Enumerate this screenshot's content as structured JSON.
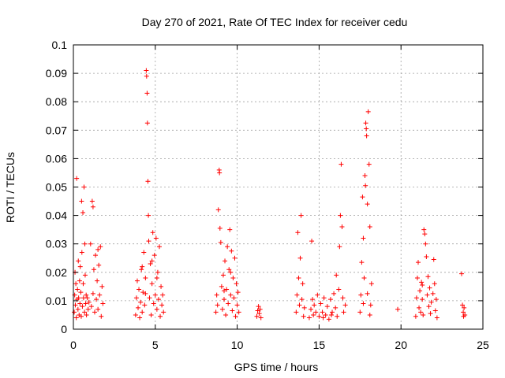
{
  "chart_data": {
    "type": "scatter",
    "title": "Day 270 of 2021, Rate Of TEC Index for receiver cedu",
    "xlabel": "GPS time / hours",
    "ylabel": "ROTI / TECUs",
    "xlim": [
      0,
      25
    ],
    "ylim": [
      0,
      0.1
    ],
    "grid": true,
    "marker": "+",
    "point_color": "#ff0000",
    "x_ticks": [
      {
        "value": 0,
        "label": "0"
      },
      {
        "value": 5,
        "label": "5"
      },
      {
        "value": 10,
        "label": "10"
      },
      {
        "value": 15,
        "label": "15"
      },
      {
        "value": 20,
        "label": "20"
      },
      {
        "value": 25,
        "label": "25"
      }
    ],
    "y_ticks": [
      {
        "value": 0,
        "label": "0"
      },
      {
        "value": 0.01,
        "label": "0.01"
      },
      {
        "value": 0.02,
        "label": "0.02"
      },
      {
        "value": 0.03,
        "label": "0.03"
      },
      {
        "value": 0.04,
        "label": "0.04"
      },
      {
        "value": 0.05,
        "label": "0.05"
      },
      {
        "value": 0.06,
        "label": "0.06"
      },
      {
        "value": 0.07,
        "label": "0.07"
      },
      {
        "value": 0.08,
        "label": "0.08"
      },
      {
        "value": 0.09,
        "label": "0.09"
      },
      {
        "value": 0.1,
        "label": "0.1"
      }
    ],
    "series": [
      {
        "name": "ROTI",
        "points": [
          [
            0.05,
            0.006
          ],
          [
            0.08,
            0.012
          ],
          [
            0.1,
            0.02
          ],
          [
            0.12,
            0.0085
          ],
          [
            0.15,
            0.016
          ],
          [
            0.18,
            0.004
          ],
          [
            0.2,
            0.053
          ],
          [
            0.22,
            0.0105
          ],
          [
            0.25,
            0.014
          ],
          [
            0.28,
            0.007
          ],
          [
            0.3,
            0.024
          ],
          [
            0.32,
            0.011
          ],
          [
            0.35,
            0.005
          ],
          [
            0.38,
            0.017
          ],
          [
            0.4,
            0.009
          ],
          [
            0.42,
            0.022
          ],
          [
            0.45,
            0.013
          ],
          [
            0.48,
            0.0045
          ],
          [
            0.5,
            0.045
          ],
          [
            0.52,
            0.027
          ],
          [
            0.55,
            0.008
          ],
          [
            0.58,
            0.041
          ],
          [
            0.6,
            0.016
          ],
          [
            0.62,
            0.011
          ],
          [
            0.65,
            0.05
          ],
          [
            0.68,
            0.006
          ],
          [
            0.7,
            0.03
          ],
          [
            0.72,
            0.019
          ],
          [
            0.75,
            0.009
          ],
          [
            0.78,
            0.012
          ],
          [
            0.8,
            0.005
          ],
          [
            0.85,
            0.011
          ],
          [
            0.9,
            0.007
          ],
          [
            0.95,
            0.0095
          ],
          [
            1.05,
            0.03
          ],
          [
            1.1,
            0.008
          ],
          [
            1.15,
            0.045
          ],
          [
            1.2,
            0.0125
          ],
          [
            1.25,
            0.021
          ],
          [
            1.3,
            0.006
          ],
          [
            1.35,
            0.026
          ],
          [
            1.4,
            0.0105
          ],
          [
            1.45,
            0.017
          ],
          [
            1.5,
            0.007
          ],
          [
            1.55,
            0.0225
          ],
          [
            1.6,
            0.012
          ],
          [
            1.65,
            0.029
          ],
          [
            1.7,
            0.0045
          ],
          [
            1.75,
            0.015
          ],
          [
            1.8,
            0.009
          ],
          [
            1.2,
            0.043
          ],
          [
            1.5,
            0.028
          ],
          [
            3.8,
            0.005
          ],
          [
            3.85,
            0.011
          ],
          [
            3.9,
            0.017
          ],
          [
            3.95,
            0.0075
          ],
          [
            4.0,
            0.014
          ],
          [
            4.05,
            0.004
          ],
          [
            4.1,
            0.0095
          ],
          [
            4.15,
            0.021
          ],
          [
            4.2,
            0.006
          ],
          [
            4.25,
            0.013
          ],
          [
            4.3,
            0.027
          ],
          [
            4.35,
            0.0085
          ],
          [
            4.4,
            0.018
          ],
          [
            4.45,
            0.091
          ],
          [
            4.47,
            0.089
          ],
          [
            4.5,
            0.083
          ],
          [
            4.52,
            0.0725
          ],
          [
            4.55,
            0.052
          ],
          [
            4.58,
            0.04
          ],
          [
            4.6,
            0.031
          ],
          [
            4.65,
            0.011
          ],
          [
            4.7,
            0.023
          ],
          [
            4.75,
            0.005
          ],
          [
            4.8,
            0.016
          ],
          [
            4.85,
            0.034
          ],
          [
            4.9,
            0.009
          ],
          [
            4.95,
            0.026
          ],
          [
            5.0,
            0.012
          ],
          [
            5.05,
            0.032
          ],
          [
            5.1,
            0.007
          ],
          [
            5.15,
            0.02
          ],
          [
            5.2,
            0.0105
          ],
          [
            5.25,
            0.029
          ],
          [
            5.3,
            0.0045
          ],
          [
            5.35,
            0.015
          ],
          [
            5.4,
            0.0085
          ],
          [
            5.45,
            0.012
          ],
          [
            5.5,
            0.006
          ],
          [
            4.2,
            0.022
          ],
          [
            4.4,
            0.0125
          ],
          [
            4.8,
            0.024
          ],
          [
            5.1,
            0.018
          ],
          [
            8.7,
            0.006
          ],
          [
            8.75,
            0.012
          ],
          [
            8.8,
            0.0085
          ],
          [
            8.85,
            0.042
          ],
          [
            8.9,
            0.056
          ],
          [
            8.92,
            0.055
          ],
          [
            8.95,
            0.0355
          ],
          [
            9.0,
            0.0305
          ],
          [
            9.05,
            0.015
          ],
          [
            9.1,
            0.007
          ],
          [
            9.15,
            0.019
          ],
          [
            9.2,
            0.0105
          ],
          [
            9.25,
            0.024
          ],
          [
            9.3,
            0.005
          ],
          [
            9.35,
            0.014
          ],
          [
            9.4,
            0.029
          ],
          [
            9.45,
            0.009
          ],
          [
            9.5,
            0.021
          ],
          [
            9.55,
            0.035
          ],
          [
            9.6,
            0.012
          ],
          [
            9.65,
            0.0275
          ],
          [
            9.7,
            0.0065
          ],
          [
            9.75,
            0.018
          ],
          [
            9.8,
            0.011
          ],
          [
            9.85,
            0.025
          ],
          [
            9.9,
            0.0045
          ],
          [
            9.95,
            0.016
          ],
          [
            10.0,
            0.0085
          ],
          [
            10.05,
            0.013
          ],
          [
            10.1,
            0.006
          ],
          [
            9.2,
            0.0135
          ],
          [
            9.6,
            0.02
          ],
          [
            11.2,
            0.0045
          ],
          [
            11.25,
            0.0065
          ],
          [
            11.3,
            0.008
          ],
          [
            11.35,
            0.0055
          ],
          [
            11.4,
            0.007
          ],
          [
            11.45,
            0.004
          ],
          [
            13.6,
            0.006
          ],
          [
            13.65,
            0.012
          ],
          [
            13.7,
            0.034
          ],
          [
            13.75,
            0.018
          ],
          [
            13.8,
            0.0085
          ],
          [
            13.85,
            0.025
          ],
          [
            13.9,
            0.04
          ],
          [
            13.95,
            0.0105
          ],
          [
            14.0,
            0.016
          ],
          [
            14.05,
            0.0045
          ],
          [
            14.1,
            0.0075
          ],
          [
            14.4,
            0.004
          ],
          [
            14.5,
            0.007
          ],
          [
            14.55,
            0.031
          ],
          [
            14.6,
            0.0105
          ],
          [
            14.65,
            0.005
          ],
          [
            14.7,
            0.0085
          ],
          [
            14.8,
            0.006
          ],
          [
            14.9,
            0.012
          ],
          [
            15.0,
            0.0045
          ],
          [
            15.1,
            0.009
          ],
          [
            15.2,
            0.006
          ],
          [
            15.3,
            0.011
          ],
          [
            15.4,
            0.005
          ],
          [
            15.5,
            0.008
          ],
          [
            15.6,
            0.0035
          ],
          [
            15.7,
            0.0105
          ],
          [
            15.8,
            0.006
          ],
          [
            15.9,
            0.0125
          ],
          [
            16.0,
            0.0075
          ],
          [
            16.05,
            0.019
          ],
          [
            16.1,
            0.0045
          ],
          [
            16.2,
            0.014
          ],
          [
            16.25,
            0.029
          ],
          [
            16.3,
            0.04
          ],
          [
            16.35,
            0.058
          ],
          [
            16.4,
            0.036
          ],
          [
            16.45,
            0.011
          ],
          [
            16.5,
            0.006
          ],
          [
            16.6,
            0.0085
          ],
          [
            15.25,
            0.004
          ],
          [
            15.75,
            0.005
          ],
          [
            17.5,
            0.006
          ],
          [
            17.55,
            0.012
          ],
          [
            17.6,
            0.0235
          ],
          [
            17.65,
            0.0465
          ],
          [
            17.7,
            0.032
          ],
          [
            17.75,
            0.018
          ],
          [
            17.8,
            0.054
          ],
          [
            17.83,
            0.0505
          ],
          [
            17.85,
            0.0725
          ],
          [
            17.88,
            0.0705
          ],
          [
            17.9,
            0.068
          ],
          [
            17.95,
            0.044
          ],
          [
            18.0,
            0.0765
          ],
          [
            18.05,
            0.058
          ],
          [
            18.1,
            0.036
          ],
          [
            18.15,
            0.0085
          ],
          [
            18.2,
            0.016
          ],
          [
            17.7,
            0.009
          ],
          [
            17.95,
            0.0125
          ],
          [
            18.1,
            0.005
          ],
          [
            19.8,
            0.007
          ],
          [
            20.9,
            0.0045
          ],
          [
            20.95,
            0.011
          ],
          [
            21.0,
            0.018
          ],
          [
            21.05,
            0.0235
          ],
          [
            21.1,
            0.0075
          ],
          [
            21.15,
            0.0135
          ],
          [
            21.2,
            0.006
          ],
          [
            21.25,
            0.0165
          ],
          [
            21.3,
            0.0105
          ],
          [
            21.35,
            0.005
          ],
          [
            21.4,
            0.035
          ],
          [
            21.45,
            0.0335
          ],
          [
            21.5,
            0.03
          ],
          [
            21.55,
            0.0255
          ],
          [
            21.6,
            0.012
          ],
          [
            21.65,
            0.0185
          ],
          [
            21.7,
            0.008
          ],
          [
            21.75,
            0.0145
          ],
          [
            21.8,
            0.0055
          ],
          [
            21.85,
            0.0095
          ],
          [
            21.95,
            0.0125
          ],
          [
            22.0,
            0.0245
          ],
          [
            22.05,
            0.016
          ],
          [
            22.1,
            0.0065
          ],
          [
            22.15,
            0.0105
          ],
          [
            22.2,
            0.004
          ],
          [
            21.3,
            0.0155
          ],
          [
            23.7,
            0.0195
          ],
          [
            23.75,
            0.0085
          ],
          [
            23.8,
            0.006
          ],
          [
            23.82,
            0.0045
          ],
          [
            23.85,
            0.0075
          ],
          [
            23.9,
            0.005
          ]
        ]
      }
    ]
  }
}
